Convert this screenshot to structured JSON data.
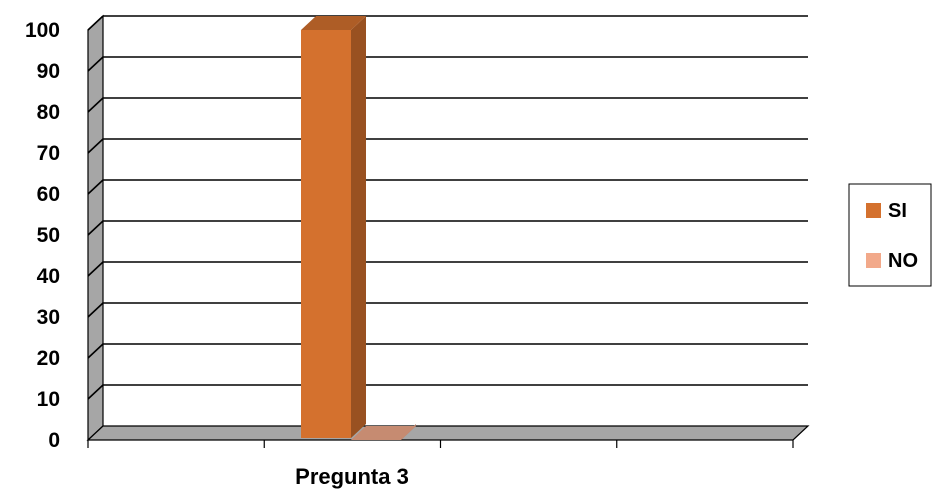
{
  "chart_data": {
    "type": "bar",
    "categories": [
      "Pregunta 3"
    ],
    "series": [
      {
        "name": "SI",
        "values": [
          100
        ],
        "color": "#d4712e"
      },
      {
        "name": "NO",
        "values": [
          0
        ],
        "color": "#f2a98a"
      }
    ],
    "ylim": [
      0,
      100
    ],
    "yticks": [
      0,
      10,
      20,
      30,
      40,
      50,
      60,
      70,
      80,
      90,
      100
    ],
    "grid": true,
    "legend_position": "right",
    "style": "3d-bar"
  }
}
